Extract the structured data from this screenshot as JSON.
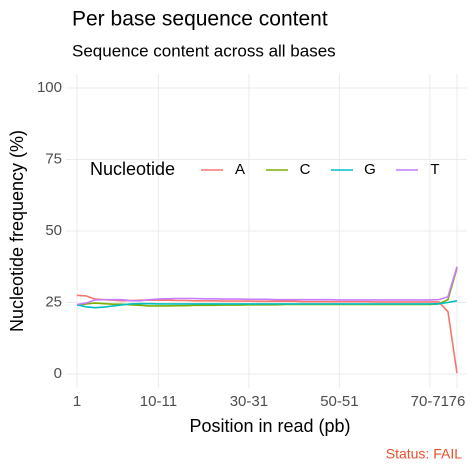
{
  "chart_data": {
    "type": "line",
    "title": "Per base sequence content",
    "subtitle": "Sequence content across all bases",
    "x_label": "Position in read (pb)",
    "y_label": "Nucleotide frequency (%)",
    "legend_title": "Nucleotide",
    "legend_position": "top",
    "grid": true,
    "categories": [
      "1",
      null,
      null,
      null,
      null,
      null,
      null,
      null,
      null,
      "10-11",
      null,
      null,
      null,
      null,
      null,
      null,
      null,
      null,
      null,
      "30-31",
      null,
      null,
      null,
      null,
      null,
      null,
      null,
      null,
      null,
      "50-51",
      null,
      null,
      null,
      null,
      null,
      null,
      null,
      null,
      null,
      "70-71",
      null,
      null,
      "76"
    ],
    "series": [
      {
        "name": "A",
        "color": "#F8766D",
        "values": [
          27.5,
          27.3,
          26.2,
          26.0,
          25.8,
          25.6,
          25.7,
          25.8,
          25.8,
          25.8,
          25.8,
          25.7,
          25.7,
          25.6,
          25.6,
          25.6,
          25.5,
          25.5,
          25.5,
          25.5,
          25.4,
          25.4,
          25.4,
          25.4,
          25.4,
          25.3,
          25.3,
          25.3,
          25.3,
          25.3,
          25.3,
          25.3,
          25.3,
          25.2,
          25.2,
          25.2,
          25.2,
          25.2,
          25.2,
          25.2,
          25.2,
          21.8,
          0.3
        ]
      },
      {
        "name": "C",
        "color": "#7CAE00",
        "values": [
          24.0,
          24.5,
          24.8,
          24.6,
          24.4,
          24.4,
          24.2,
          24.0,
          23.8,
          23.8,
          23.8,
          23.9,
          23.9,
          24.0,
          24.0,
          24.0,
          24.1,
          24.1,
          24.1,
          24.2,
          24.2,
          24.2,
          24.2,
          24.3,
          24.3,
          24.3,
          24.3,
          24.3,
          24.3,
          24.3,
          24.3,
          24.3,
          24.3,
          24.3,
          24.3,
          24.3,
          24.3,
          24.3,
          24.3,
          24.3,
          24.5,
          26.0,
          37.0
        ]
      },
      {
        "name": "G",
        "color": "#00BFC4",
        "values": [
          24.2,
          23.5,
          23.2,
          23.4,
          23.8,
          24.2,
          24.5,
          24.6,
          24.6,
          24.5,
          24.5,
          24.5,
          24.5,
          24.5,
          24.5,
          24.5,
          24.5,
          24.5,
          24.5,
          24.5,
          24.5,
          24.5,
          24.5,
          24.5,
          24.5,
          24.5,
          24.5,
          24.5,
          24.5,
          24.5,
          24.5,
          24.5,
          24.5,
          24.5,
          24.5,
          24.5,
          24.5,
          24.5,
          24.5,
          24.5,
          24.6,
          25.0,
          25.6
        ]
      },
      {
        "name": "T",
        "color": "#C77CFF",
        "values": [
          24.3,
          24.8,
          25.9,
          26.0,
          26.0,
          26.0,
          25.6,
          25.6,
          26.0,
          26.2,
          26.3,
          26.4,
          26.4,
          26.4,
          26.3,
          26.3,
          26.2,
          26.2,
          26.2,
          26.1,
          26.1,
          26.1,
          26.0,
          26.0,
          26.0,
          26.0,
          26.0,
          26.0,
          26.0,
          25.9,
          25.9,
          25.9,
          25.9,
          25.9,
          25.9,
          25.9,
          25.9,
          25.9,
          25.9,
          25.9,
          26.0,
          27.0,
          37.5
        ]
      }
    ],
    "ylim": [
      0,
      100
    ],
    "yticks": [
      0,
      25,
      50,
      75,
      100
    ]
  },
  "status": "Status: FAIL"
}
